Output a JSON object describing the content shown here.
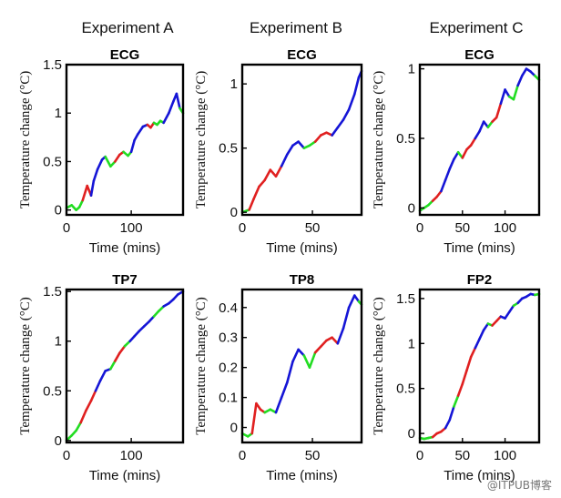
{
  "figure": {
    "column_titles": [
      "Experiment A",
      "Experiment B",
      "Experiment C"
    ],
    "watermark": "@ITPUB博客"
  },
  "colors": {
    "blue": "#1515d6",
    "red": "#e02020",
    "green": "#22dd22"
  },
  "chart_data": [
    {
      "type": "line",
      "title": "ECG",
      "xlabel": "Time (mins)",
      "ylabel": "Temperature change (°C)",
      "xlim": [
        0,
        180
      ],
      "ylim": [
        -0.05,
        1.5
      ],
      "xticks": [
        0,
        100
      ],
      "yticks": [
        0,
        0.5,
        1,
        1.5
      ],
      "x": [
        0,
        8,
        15,
        20,
        25,
        32,
        38,
        42,
        48,
        55,
        60,
        68,
        75,
        82,
        88,
        95,
        100,
        105,
        110,
        118,
        125,
        130,
        135,
        140,
        145,
        150,
        158,
        165,
        170,
        175,
        180
      ],
      "y": [
        0.02,
        0.05,
        0.0,
        0.03,
        0.1,
        0.25,
        0.15,
        0.3,
        0.42,
        0.52,
        0.55,
        0.45,
        0.5,
        0.57,
        0.6,
        0.56,
        0.6,
        0.72,
        0.78,
        0.86,
        0.88,
        0.85,
        0.9,
        0.88,
        0.92,
        0.9,
        1.0,
        1.12,
        1.2,
        1.05,
        1.0
      ],
      "colors": [
        "green",
        "green",
        "green",
        "green",
        "red",
        "red",
        "blue",
        "blue",
        "blue",
        "blue",
        "green",
        "green",
        "red",
        "red",
        "green",
        "green",
        "blue",
        "blue",
        "blue",
        "blue",
        "red",
        "red",
        "green",
        "green",
        "green",
        "blue",
        "blue",
        "blue",
        "blue",
        "green",
        "green"
      ]
    },
    {
      "type": "line",
      "title": "ECG",
      "xlabel": "Time (mins)",
      "ylabel": "Temperature change (°C)",
      "xlim": [
        0,
        85
      ],
      "ylim": [
        -0.02,
        1.15
      ],
      "xticks": [
        0,
        50
      ],
      "yticks": [
        0,
        0.5,
        1
      ],
      "x": [
        0,
        5,
        8,
        12,
        16,
        20,
        24,
        28,
        32,
        36,
        40,
        44,
        48,
        52,
        56,
        60,
        64,
        68,
        72,
        76,
        80,
        83,
        85
      ],
      "y": [
        0.0,
        0.02,
        0.1,
        0.2,
        0.25,
        0.33,
        0.28,
        0.36,
        0.45,
        0.52,
        0.55,
        0.5,
        0.52,
        0.55,
        0.6,
        0.62,
        0.6,
        0.66,
        0.72,
        0.8,
        0.92,
        1.05,
        1.1
      ],
      "colors": [
        "green",
        "red",
        "red",
        "red",
        "red",
        "red",
        "red",
        "blue",
        "blue",
        "blue",
        "blue",
        "green",
        "green",
        "red",
        "red",
        "red",
        "blue",
        "blue",
        "blue",
        "blue",
        "blue",
        "blue",
        "green"
      ]
    },
    {
      "type": "line",
      "title": "ECG",
      "xlabel": "Time (mins)",
      "ylabel": "Temperature change (°C)",
      "xlim": [
        0,
        140
      ],
      "ylim": [
        -0.05,
        1.03
      ],
      "xticks": [
        0,
        50,
        100
      ],
      "yticks": [
        0,
        0.5,
        1
      ],
      "x": [
        0,
        5,
        10,
        15,
        20,
        25,
        30,
        35,
        40,
        45,
        50,
        55,
        60,
        65,
        70,
        75,
        80,
        85,
        90,
        95,
        100,
        105,
        110,
        115,
        120,
        125,
        130,
        135,
        140
      ],
      "y": [
        -0.02,
        0.0,
        0.02,
        0.05,
        0.08,
        0.12,
        0.2,
        0.28,
        0.35,
        0.4,
        0.36,
        0.42,
        0.45,
        0.5,
        0.55,
        0.62,
        0.58,
        0.62,
        0.65,
        0.75,
        0.85,
        0.8,
        0.78,
        0.88,
        0.95,
        1.0,
        0.98,
        0.95,
        0.92
      ],
      "colors": [
        "green",
        "green",
        "green",
        "red",
        "red",
        "blue",
        "blue",
        "blue",
        "blue",
        "green",
        "red",
        "red",
        "red",
        "blue",
        "blue",
        "blue",
        "green",
        "red",
        "red",
        "blue",
        "blue",
        "green",
        "green",
        "blue",
        "blue",
        "blue",
        "blue",
        "green",
        "green"
      ]
    },
    {
      "type": "line",
      "title": "TP7",
      "xlabel": "Time (mins)",
      "ylabel": "Temperature change (°C)",
      "xlim": [
        0,
        180
      ],
      "ylim": [
        -0.02,
        1.52
      ],
      "xticks": [
        0,
        100
      ],
      "yticks": [
        0,
        0.5,
        1,
        1.5
      ],
      "x": [
        0,
        8,
        15,
        22,
        30,
        38,
        45,
        52,
        60,
        68,
        75,
        82,
        90,
        98,
        105,
        112,
        120,
        128,
        135,
        142,
        150,
        158,
        165,
        172,
        180
      ],
      "y": [
        0.0,
        0.05,
        0.1,
        0.18,
        0.3,
        0.4,
        0.5,
        0.6,
        0.7,
        0.72,
        0.8,
        0.88,
        0.95,
        1.0,
        1.05,
        1.1,
        1.15,
        1.2,
        1.25,
        1.3,
        1.35,
        1.38,
        1.42,
        1.47,
        1.5
      ],
      "colors": [
        "green",
        "green",
        "green",
        "red",
        "red",
        "red",
        "blue",
        "blue",
        "blue",
        "green",
        "red",
        "red",
        "green",
        "blue",
        "blue",
        "blue",
        "blue",
        "blue",
        "green",
        "green",
        "blue",
        "blue",
        "blue",
        "blue",
        "green"
      ]
    },
    {
      "type": "line",
      "title": "TP8",
      "xlabel": "Time (mins)",
      "ylabel": "Temperature change (°C)",
      "xlim": [
        0,
        85
      ],
      "ylim": [
        -0.05,
        0.46
      ],
      "xticks": [
        0,
        50
      ],
      "yticks": [
        0,
        0.1,
        0.2,
        0.3,
        0.4
      ],
      "x": [
        0,
        4,
        7,
        10,
        13,
        16,
        20,
        24,
        28,
        32,
        36,
        40,
        44,
        48,
        52,
        56,
        60,
        64,
        68,
        72,
        76,
        80,
        83,
        85
      ],
      "y": [
        -0.02,
        -0.03,
        -0.02,
        0.08,
        0.06,
        0.05,
        0.06,
        0.05,
        0.1,
        0.15,
        0.22,
        0.26,
        0.24,
        0.2,
        0.25,
        0.27,
        0.29,
        0.3,
        0.28,
        0.33,
        0.4,
        0.44,
        0.42,
        0.41
      ],
      "colors": [
        "green",
        "green",
        "red",
        "red",
        "red",
        "green",
        "green",
        "blue",
        "blue",
        "blue",
        "blue",
        "blue",
        "green",
        "green",
        "red",
        "red",
        "red",
        "red",
        "blue",
        "blue",
        "blue",
        "blue",
        "green",
        "green"
      ]
    },
    {
      "type": "line",
      "title": "FP2",
      "xlabel": "Time (mins)",
      "ylabel": "Temperature change (°C)",
      "xlim": [
        0,
        140
      ],
      "ylim": [
        -0.1,
        1.6
      ],
      "xticks": [
        0,
        50,
        100
      ],
      "yticks": [
        0,
        0.5,
        1,
        1.5
      ],
      "x": [
        0,
        5,
        10,
        15,
        20,
        25,
        30,
        35,
        40,
        45,
        50,
        55,
        60,
        65,
        70,
        75,
        80,
        85,
        90,
        95,
        100,
        105,
        110,
        115,
        120,
        125,
        130,
        135,
        140
      ],
      "y": [
        -0.05,
        -0.06,
        -0.05,
        -0.04,
        0.0,
        0.02,
        0.06,
        0.15,
        0.3,
        0.42,
        0.55,
        0.7,
        0.85,
        0.95,
        1.05,
        1.15,
        1.22,
        1.2,
        1.25,
        1.3,
        1.28,
        1.35,
        1.42,
        1.45,
        1.5,
        1.52,
        1.55,
        1.54,
        1.55
      ],
      "colors": [
        "green",
        "green",
        "green",
        "red",
        "red",
        "red",
        "blue",
        "blue",
        "green",
        "red",
        "red",
        "red",
        "red",
        "blue",
        "blue",
        "blue",
        "green",
        "red",
        "red",
        "blue",
        "blue",
        "blue",
        "green",
        "blue",
        "blue",
        "blue",
        "blue",
        "green",
        "green"
      ]
    }
  ]
}
